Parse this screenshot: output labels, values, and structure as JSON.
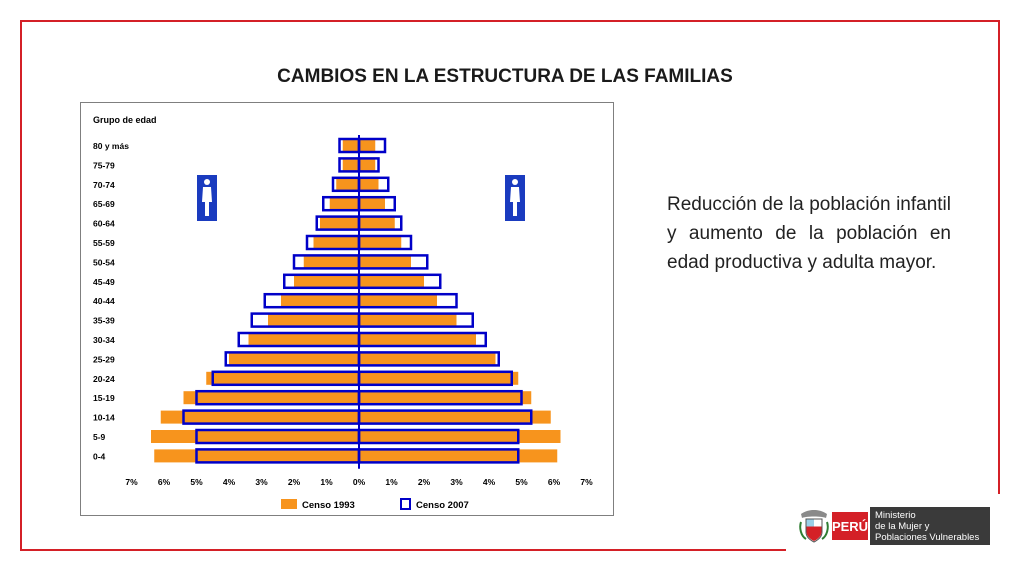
{
  "slide": {
    "title": "CAMBIOS EN LA ESTRUCTURA DE LAS FAMILIAS",
    "body": "Reducción de la población infantil y aumento de la población en edad productiva y adulta mayor.",
    "accent_color": "#d42027"
  },
  "footer": {
    "peru_label": "PERÚ",
    "ministry_lines": [
      "Ministerio",
      "de la Mujer y",
      "Poblaciones Vulnerables"
    ],
    "seal_text": "REPÚBLICA DEL PERÚ"
  },
  "chart_data": {
    "type": "bar",
    "subtype": "population-pyramid",
    "y_axis_title": "Grupo de edad",
    "categories": [
      "80 y más",
      "75-79",
      "70-74",
      "65-69",
      "60-64",
      "55-59",
      "50-54",
      "45-49",
      "40-44",
      "35-39",
      "30-34",
      "25-29",
      "20-24",
      "15-19",
      "10-14",
      "5-9",
      "0-4"
    ],
    "x_ticks": [
      "7%",
      "6%",
      "5%",
      "4%",
      "3%",
      "2%",
      "1%",
      "0%",
      "1%",
      "2%",
      "3%",
      "4%",
      "5%",
      "6%",
      "7%"
    ],
    "xlim": [
      -7,
      7
    ],
    "series": [
      {
        "name": "Censo 1993",
        "color": "#f7941d",
        "style": "filled",
        "left": [
          0.5,
          0.5,
          0.7,
          0.9,
          1.2,
          1.4,
          1.7,
          2.0,
          2.4,
          2.8,
          3.4,
          4.0,
          4.7,
          5.4,
          6.1,
          6.4,
          6.3
        ],
        "right": [
          0.5,
          0.5,
          0.6,
          0.8,
          1.1,
          1.3,
          1.6,
          2.0,
          2.4,
          3.0,
          3.6,
          4.2,
          4.9,
          5.3,
          5.9,
          6.2,
          6.1
        ]
      },
      {
        "name": "Censo 2007",
        "color": "#0000c8",
        "style": "outline",
        "left": [
          0.6,
          0.6,
          0.8,
          1.1,
          1.3,
          1.6,
          2.0,
          2.3,
          2.9,
          3.3,
          3.7,
          4.1,
          4.5,
          5.0,
          5.4,
          5.0,
          5.0
        ],
        "right": [
          0.8,
          0.6,
          0.9,
          1.1,
          1.3,
          1.6,
          2.1,
          2.5,
          3.0,
          3.5,
          3.9,
          4.3,
          4.7,
          5.0,
          5.3,
          4.9,
          4.9
        ]
      }
    ],
    "legend_position": "bottom",
    "grid": false
  }
}
